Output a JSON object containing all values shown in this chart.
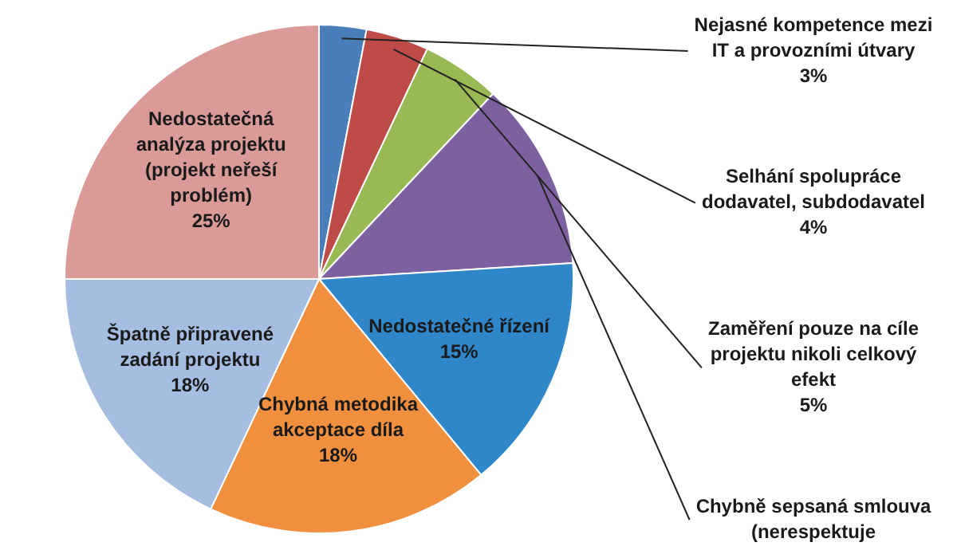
{
  "chart_data": {
    "type": "pie",
    "categories": [
      "Nejasné kompetence mezi IT a provozními útvary",
      "Selhání spolupráce dodavatel, subdodavatel",
      "Zaměření pouze na cíle projektu nikoli celkový efekt",
      "Chybně sepsaná smlouva (nerespektuje",
      "Nedostatečné řízení",
      "Chybná metodika akceptace díla",
      "Špatně připravené zadání projektu",
      "Nedostatečná analýza projektu (projekt neřeší problém)"
    ],
    "values": [
      3,
      4,
      5,
      12,
      15,
      18,
      18,
      25
    ],
    "value_labels": [
      "3%",
      "4%",
      "5%",
      null,
      "15%",
      "18%",
      "18%",
      "25%"
    ],
    "colors": [
      "#4a7ebb",
      "#be4b48",
      "#98b954",
      "#7d60a0",
      "#2f86c8",
      "#f0903f",
      "#a4bde0",
      "#da9a98"
    ],
    "legend": false
  }
}
